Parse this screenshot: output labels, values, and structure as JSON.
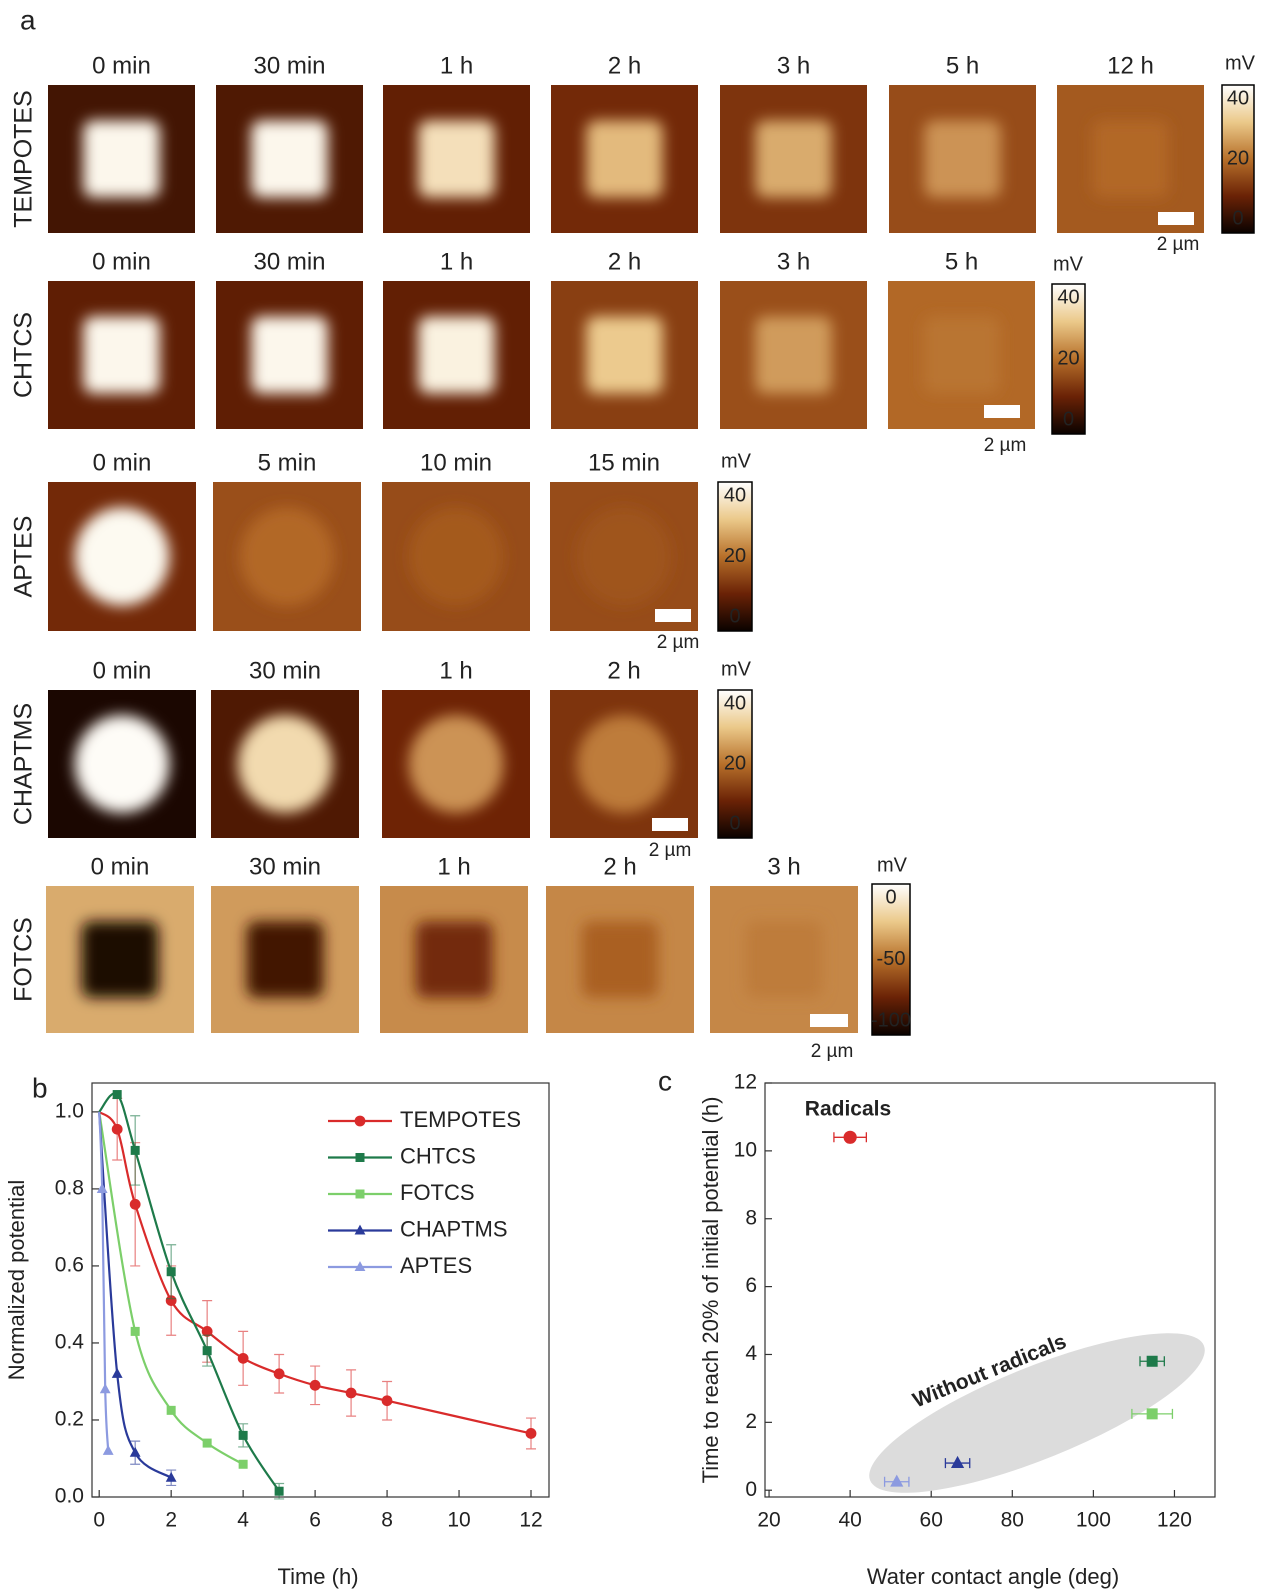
{
  "panel_labels": [
    "a",
    "b",
    "c"
  ],
  "panel_a": {
    "rows": [
      {
        "name": "TEMPOTES",
        "times": [
          "0 min",
          "30 min",
          "1 h",
          "2 h",
          "3 h",
          "5 h",
          "12 h"
        ],
        "unit": "mV",
        "colorbar_ticks": [
          40,
          20,
          0
        ],
        "scale_bar": "2 µm"
      },
      {
        "name": "CHTCS",
        "times": [
          "0 min",
          "30 min",
          "1 h",
          "2 h",
          "3 h",
          "5 h"
        ],
        "unit": "mV",
        "colorbar_ticks": [
          40,
          20,
          0
        ],
        "scale_bar": "2 µm"
      },
      {
        "name": "APTES",
        "times": [
          "0 min",
          "5 min",
          "10 min",
          "15 min"
        ],
        "unit": "mV",
        "colorbar_ticks": [
          40,
          20,
          0
        ],
        "scale_bar": "2 µm"
      },
      {
        "name": "CHAPTMS",
        "times": [
          "0 min",
          "30 min",
          "1 h",
          "2 h"
        ],
        "unit": "mV",
        "colorbar_ticks": [
          40,
          20,
          0
        ],
        "scale_bar": "2 µm"
      },
      {
        "name": "FOTCS",
        "times": [
          "0 min",
          "30 min",
          "1 h",
          "2 h",
          "3 h"
        ],
        "unit": "mV",
        "colorbar_ticks": [
          0,
          -50,
          -100
        ],
        "scale_bar": "2 µm"
      }
    ]
  },
  "chart_data": [
    {
      "type": "line",
      "x_label": "Time (h)",
      "y_label": "Normalized potential",
      "xlim": [
        -0.2,
        12.5
      ],
      "xticks": [
        0,
        2,
        4,
        6,
        8,
        10,
        12
      ],
      "ylim": [
        0,
        1.075
      ],
      "yticks": [
        {
          "value": 0,
          "label": "0.0"
        },
        0.2,
        0.4,
        0.6,
        0.8,
        {
          "value": 1,
          "label": "1.0"
        }
      ],
      "series": [
        {
          "name": "TEMPOTES",
          "color": "#d92b2b",
          "marker": "circle",
          "x": [
            0,
            0.5,
            1,
            2,
            3,
            4,
            5,
            6,
            7,
            8,
            12
          ],
          "values": [
            1.0,
            0.955,
            0.76,
            0.51,
            0.43,
            0.36,
            0.32,
            0.29,
            0.27,
            0.25,
            0.165
          ],
          "errors": [
            null,
            0.08,
            0.16,
            0.09,
            0.08,
            0.07,
            0.05,
            0.05,
            0.06,
            0.05,
            0.04
          ]
        },
        {
          "name": "CHTCS",
          "color": "#1e7a4a",
          "marker": "square",
          "x": [
            0,
            0.5,
            1,
            2,
            3,
            4,
            5
          ],
          "values": [
            1.0,
            1.045,
            0.9,
            0.585,
            0.38,
            0.16,
            0.015
          ],
          "errors": [
            null,
            null,
            0.09,
            0.07,
            0.04,
            0.03,
            0.02
          ]
        },
        {
          "name": "FOTCS",
          "color": "#7ccf6a",
          "marker": "square",
          "x": [
            0,
            1,
            2,
            3,
            4
          ],
          "values": [
            1.0,
            0.43,
            0.225,
            0.14,
            0.085
          ],
          "errors": [
            null,
            null,
            null,
            null,
            null
          ]
        },
        {
          "name": "CHAPTMS",
          "color": "#2a3a9a",
          "marker": "triangle",
          "x": [
            0,
            0.5,
            1,
            2
          ],
          "values": [
            1.0,
            0.32,
            0.115,
            0.05
          ],
          "errors": [
            null,
            null,
            0.03,
            0.02
          ]
        },
        {
          "name": "APTES",
          "color": "#8c9ae0",
          "marker": "triangle",
          "x": [
            0,
            0.083,
            0.167,
            0.25
          ],
          "values": [
            1.0,
            0.8,
            0.28,
            0.12
          ],
          "errors": [
            null,
            null,
            null,
            null
          ]
        }
      ],
      "legend": "upper right"
    },
    {
      "type": "scatter",
      "x_label": "Water contact angle (deg)",
      "y_label": "Time to reach 20% of initial potential (h)",
      "xlim": [
        19,
        130
      ],
      "xticks": [
        20,
        40,
        60,
        80,
        100,
        120
      ],
      "ylim": [
        -0.2,
        12
      ],
      "yticks": [
        0,
        2,
        4,
        6,
        8,
        10,
        12
      ],
      "x": [
        40,
        114.5,
        114.5,
        66.5,
        51.5
      ],
      "values": [
        10.4,
        3.8,
        2.25,
        0.8,
        0.25
      ],
      "x_errors": [
        4,
        3,
        5,
        3,
        3
      ],
      "colors": [
        "#d92b2b",
        "#1e7a4a",
        "#7ccf6a",
        "#2a3a9a",
        "#8c9ae0"
      ],
      "markers": [
        "circle",
        "square",
        "square",
        "triangle",
        "triangle"
      ],
      "annotations": [
        {
          "text": "Radicals",
          "color": "#e0202a"
        },
        {
          "text": "Without radicals",
          "color": "#8a8a8a"
        }
      ]
    }
  ]
}
